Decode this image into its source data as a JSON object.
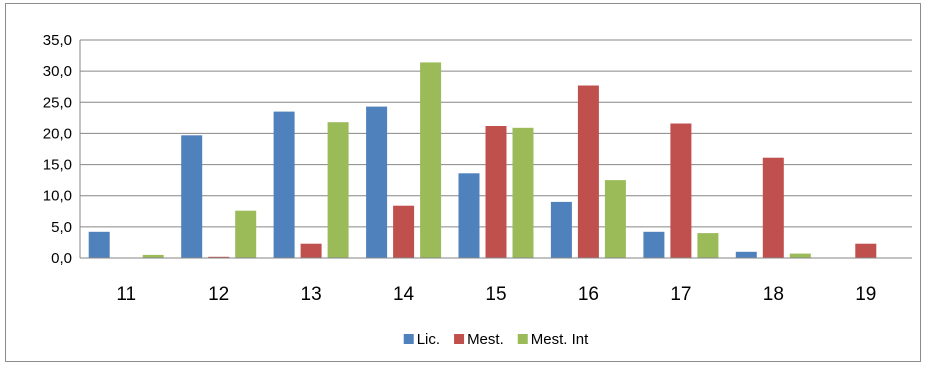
{
  "chart_data": {
    "type": "bar",
    "categories": [
      "11",
      "12",
      "13",
      "14",
      "15",
      "16",
      "17",
      "18",
      "19"
    ],
    "series": [
      {
        "name": "Lic.",
        "color": "#4f81bd",
        "values": [
          4.2,
          19.7,
          23.5,
          24.3,
          13.6,
          9.0,
          4.2,
          1.0,
          0.0
        ]
      },
      {
        "name": "Mest.",
        "color": "#c0504d",
        "values": [
          0.0,
          0.2,
          2.3,
          8.4,
          21.2,
          27.7,
          21.6,
          16.1,
          2.3
        ]
      },
      {
        "name": "Mest. Int",
        "color": "#9bbb59",
        "values": [
          0.5,
          7.6,
          21.8,
          31.4,
          20.9,
          12.5,
          4.0,
          0.7,
          0.0
        ]
      }
    ],
    "yticks": [
      "0,0",
      "5,0",
      "10,0",
      "15,0",
      "20,0",
      "25,0",
      "30,0",
      "35,0"
    ],
    "ylim": [
      0,
      35
    ],
    "grid": true,
    "legend_position": "bottom"
  }
}
